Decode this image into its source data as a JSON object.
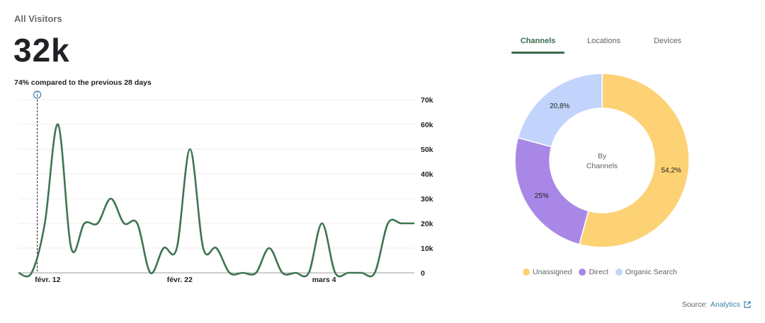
{
  "header": {
    "title": "All Visitors",
    "value": "32k",
    "comparison": "74% compared to the previous 28 days"
  },
  "tabs": [
    {
      "label": "Channels",
      "active": true
    },
    {
      "label": "Locations",
      "active": false
    },
    {
      "label": "Devices",
      "active": false
    }
  ],
  "donut_center": {
    "line1": "By",
    "line2": "Channels"
  },
  "source": {
    "label": "Source:",
    "link": "Analytics",
    "icon": "external-link-icon"
  },
  "colors": {
    "line": "#3f7552",
    "unassigned": "#fdd275",
    "direct": "#a987e6",
    "organic_search": "#c2d4fc",
    "tab_active": "#3a6b4d",
    "info_icon": "#3a7ea8"
  },
  "chart_data": [
    {
      "type": "line",
      "title": "",
      "xlabel": "",
      "ylabel": "",
      "x_tick_labels": [
        "févr. 12",
        "févr. 22",
        "mars 4"
      ],
      "y_ticks": [
        0,
        10000,
        20000,
        30000,
        40000,
        50000,
        60000,
        70000
      ],
      "y_tick_labels": [
        "0",
        "10k",
        "20k",
        "30k",
        "40k",
        "50k",
        "60k",
        "70k"
      ],
      "ylim": [
        0,
        70000
      ],
      "y_axis_side": "right",
      "grid": true,
      "marker_icon": "info-icon",
      "x": [
        "févr. 10",
        "févr. 11",
        "févr. 12",
        "févr. 13",
        "févr. 14",
        "févr. 15",
        "févr. 16",
        "févr. 17",
        "févr. 18",
        "févr. 19",
        "févr. 20",
        "févr. 21",
        "févr. 22",
        "févr. 23",
        "févr. 24",
        "févr. 25",
        "févr. 26",
        "févr. 27",
        "févr. 28",
        "févr. 29",
        "mars 1",
        "mars 2",
        "mars 3",
        "mars 4",
        "mars 5",
        "mars 6",
        "mars 7",
        "mars 8",
        "mars 9",
        "mars 10",
        "mars 11"
      ],
      "values": [
        0,
        0,
        20000,
        60000,
        10000,
        20000,
        20000,
        30000,
        20000,
        20000,
        0,
        10000,
        10000,
        50000,
        10000,
        10000,
        0,
        0,
        0,
        10000,
        0,
        0,
        0,
        20000,
        0,
        0,
        0,
        0,
        20000,
        20000,
        20000
      ]
    },
    {
      "type": "pie",
      "title": "",
      "categories": [
        "Unassigned",
        "Direct",
        "Organic Search"
      ],
      "values": [
        54.2,
        25,
        20.8
      ],
      "value_labels": [
        "54,2%",
        "25%",
        "20,8%"
      ],
      "legend": "bottom"
    }
  ]
}
